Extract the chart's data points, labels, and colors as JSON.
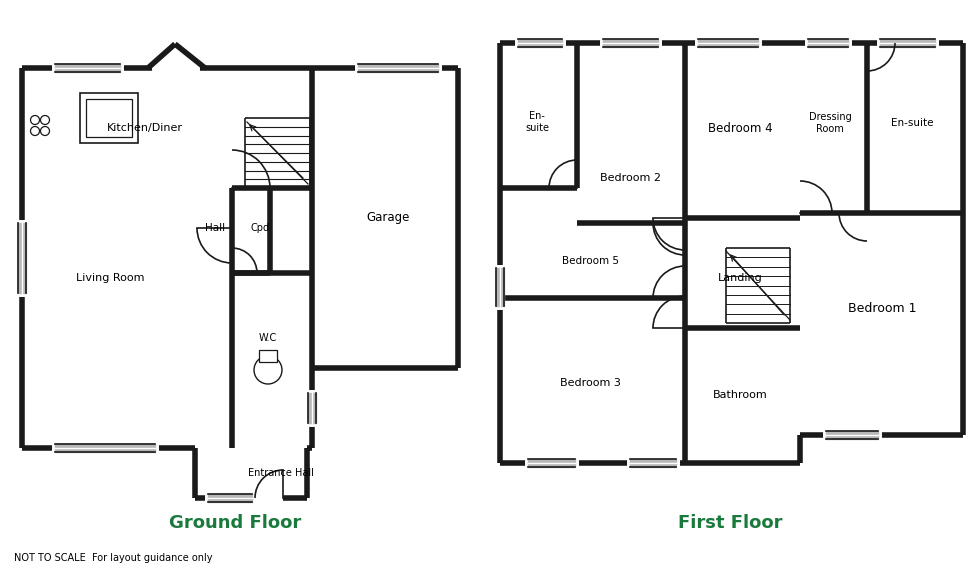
{
  "ground_floor_label": "Ground Floor",
  "first_floor_label": "First Floor",
  "disclaimer": "NOT TO SCALE  For layout guidance only",
  "label_color": "#1a7a3c",
  "wall_color": "#1a1a1a",
  "wall_lw": 4.0,
  "thin_lw": 1.2,
  "bg_color": "#ffffff",
  "window_color": "#b8b8b8"
}
